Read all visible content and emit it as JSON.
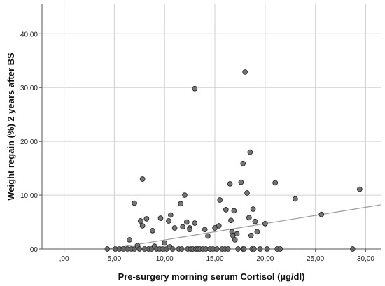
{
  "chart_data": {
    "type": "scatter",
    "title": "",
    "xlabel": "Pre-surgery morning serum Cortisol (µg/dl)",
    "ylabel": "Weight regain (%) 2 years after BS",
    "xlim": [
      -2.2,
      31.5
    ],
    "ylim": [
      0,
      45.5
    ],
    "x_ticks": [
      0,
      5,
      10,
      15,
      20,
      25,
      30
    ],
    "x_tick_labels": [
      ",00",
      "5,00",
      "10,00",
      "15,00",
      "20,00",
      "25,00",
      "30,00"
    ],
    "y_ticks": [
      0,
      10,
      20,
      30,
      40
    ],
    "y_tick_labels": [
      ",00",
      "10,00",
      "20,00",
      "30,00",
      "40,00"
    ],
    "grid": true,
    "legend": "none",
    "colors": {
      "point_fill": "#767676",
      "point_stroke": "#262626",
      "fit_line": "#9a9a9a",
      "grid": "#cfcfcf",
      "axis": "#555555"
    },
    "fit_line": {
      "x": [
        4.5,
        31.5
      ],
      "y": [
        0,
        8.2
      ]
    },
    "points": [
      {
        "x": 4.3,
        "y": 0.0
      },
      {
        "x": 5.1,
        "y": 0.0
      },
      {
        "x": 5.5,
        "y": 0.0
      },
      {
        "x": 5.9,
        "y": 0.0
      },
      {
        "x": 6.3,
        "y": 0.0
      },
      {
        "x": 6.5,
        "y": 1.7
      },
      {
        "x": 6.7,
        "y": 0.0
      },
      {
        "x": 7.0,
        "y": 8.5
      },
      {
        "x": 7.0,
        "y": 0.0
      },
      {
        "x": 7.3,
        "y": 0.6
      },
      {
        "x": 7.5,
        "y": 0.0
      },
      {
        "x": 7.6,
        "y": 5.2
      },
      {
        "x": 7.8,
        "y": 13.0
      },
      {
        "x": 7.8,
        "y": 4.3
      },
      {
        "x": 8.0,
        "y": 0.0
      },
      {
        "x": 8.2,
        "y": 5.6
      },
      {
        "x": 8.4,
        "y": 0.0
      },
      {
        "x": 8.7,
        "y": 0.0
      },
      {
        "x": 8.8,
        "y": 3.4
      },
      {
        "x": 9.0,
        "y": 0.5
      },
      {
        "x": 9.2,
        "y": 0.0
      },
      {
        "x": 9.5,
        "y": 0.0
      },
      {
        "x": 9.6,
        "y": 5.7
      },
      {
        "x": 9.8,
        "y": 0.0
      },
      {
        "x": 10.0,
        "y": 1.1
      },
      {
        "x": 10.2,
        "y": 0.0
      },
      {
        "x": 10.4,
        "y": 5.2
      },
      {
        "x": 10.5,
        "y": 0.4
      },
      {
        "x": 10.6,
        "y": 6.3
      },
      {
        "x": 10.8,
        "y": 0.0
      },
      {
        "x": 11.0,
        "y": 3.9
      },
      {
        "x": 11.4,
        "y": 0.0
      },
      {
        "x": 11.6,
        "y": 8.4
      },
      {
        "x": 11.7,
        "y": 0.0
      },
      {
        "x": 11.8,
        "y": 4.1
      },
      {
        "x": 12.0,
        "y": 10.0
      },
      {
        "x": 12.2,
        "y": 5.0
      },
      {
        "x": 12.3,
        "y": 0.0
      },
      {
        "x": 12.5,
        "y": 3.9
      },
      {
        "x": 12.5,
        "y": 3.6
      },
      {
        "x": 12.6,
        "y": 0.0
      },
      {
        "x": 12.8,
        "y": 0.0
      },
      {
        "x": 13.0,
        "y": 29.8
      },
      {
        "x": 13.0,
        "y": 4.8
      },
      {
        "x": 13.1,
        "y": 0.0
      },
      {
        "x": 13.3,
        "y": 0.0
      },
      {
        "x": 13.5,
        "y": 0.0
      },
      {
        "x": 13.8,
        "y": 0.0
      },
      {
        "x": 14.0,
        "y": 3.6
      },
      {
        "x": 14.1,
        "y": 0.0
      },
      {
        "x": 14.3,
        "y": 2.4
      },
      {
        "x": 14.5,
        "y": 0.0
      },
      {
        "x": 14.8,
        "y": 0.0
      },
      {
        "x": 15.0,
        "y": 3.9
      },
      {
        "x": 15.2,
        "y": 0.0
      },
      {
        "x": 15.4,
        "y": 4.3
      },
      {
        "x": 15.5,
        "y": 9.1
      },
      {
        "x": 15.7,
        "y": 0.0
      },
      {
        "x": 16.0,
        "y": 0.0
      },
      {
        "x": 16.1,
        "y": 7.3
      },
      {
        "x": 16.3,
        "y": 0.0
      },
      {
        "x": 16.5,
        "y": 12.1
      },
      {
        "x": 16.6,
        "y": 5.3
      },
      {
        "x": 16.7,
        "y": 3.2
      },
      {
        "x": 16.8,
        "y": 2.5
      },
      {
        "x": 16.9,
        "y": 7.1
      },
      {
        "x": 17.0,
        "y": 1.7
      },
      {
        "x": 17.2,
        "y": 2.8
      },
      {
        "x": 17.3,
        "y": 0.0
      },
      {
        "x": 17.6,
        "y": 12.4
      },
      {
        "x": 17.8,
        "y": 15.9
      },
      {
        "x": 17.8,
        "y": 0.0
      },
      {
        "x": 17.9,
        "y": 0.0
      },
      {
        "x": 18.0,
        "y": 32.9
      },
      {
        "x": 18.2,
        "y": 10.4
      },
      {
        "x": 18.4,
        "y": 5.8
      },
      {
        "x": 18.5,
        "y": 18.0
      },
      {
        "x": 18.6,
        "y": 2.5
      },
      {
        "x": 18.7,
        "y": 0.0
      },
      {
        "x": 18.8,
        "y": 7.4
      },
      {
        "x": 18.9,
        "y": 0.0
      },
      {
        "x": 19.0,
        "y": 5.1
      },
      {
        "x": 19.2,
        "y": 3.2
      },
      {
        "x": 19.5,
        "y": 0.0
      },
      {
        "x": 20.0,
        "y": 4.7
      },
      {
        "x": 20.2,
        "y": 0.0
      },
      {
        "x": 21.0,
        "y": 12.3
      },
      {
        "x": 21.2,
        "y": 0.0
      },
      {
        "x": 21.5,
        "y": 0.0
      },
      {
        "x": 23.0,
        "y": 9.3
      },
      {
        "x": 25.6,
        "y": 6.4
      },
      {
        "x": 28.7,
        "y": 0.0
      },
      {
        "x": 29.4,
        "y": 11.1
      }
    ]
  }
}
